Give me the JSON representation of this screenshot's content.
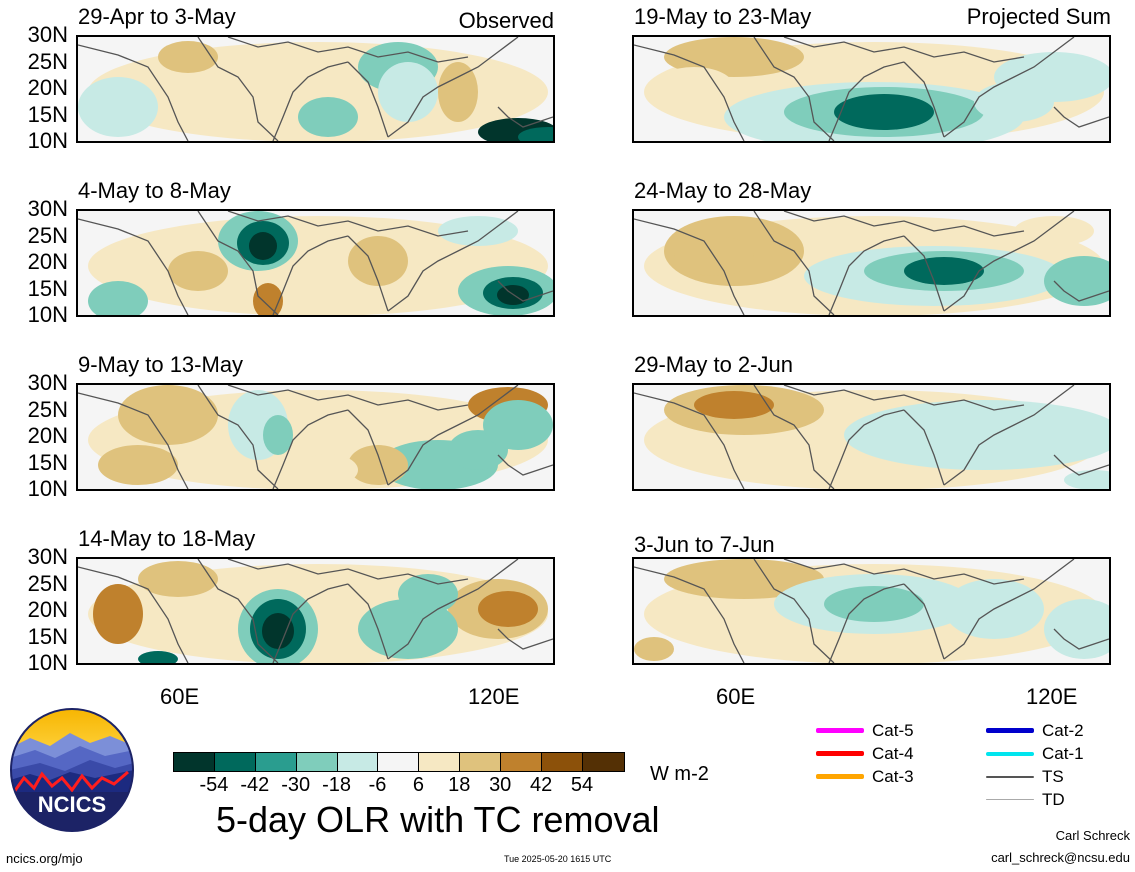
{
  "observed_label": "Observed",
  "projected_label": "Projected Sum",
  "panels_left": [
    {
      "title": "29-Apr to 3-May"
    },
    {
      "title": "4-May to 8-May"
    },
    {
      "title": "9-May to 13-May"
    },
    {
      "title": "14-May to 18-May"
    }
  ],
  "panels_right": [
    {
      "title": "19-May to 23-May"
    },
    {
      "title": "24-May to 28-May"
    },
    {
      "title": "29-May to 2-Jun"
    },
    {
      "title": "3-Jun to 7-Jun"
    }
  ],
  "y_ticks": [
    "30N",
    "25N",
    "20N",
    "15N",
    "10N"
  ],
  "x_ticks": [
    "60E",
    "120E"
  ],
  "colorbar": {
    "colors": [
      "#01352c",
      "#00695c",
      "#2a9d8f",
      "#7fcdbb",
      "#c7eae5",
      "#f5f5f5",
      "#f6e8c3",
      "#dfc27d",
      "#bf812d",
      "#8c510a",
      "#543005"
    ],
    "labels": [
      "-54",
      "-42",
      "-30",
      "-18",
      "-6",
      "6",
      "18",
      "30",
      "42",
      "54"
    ],
    "units": "W m-2"
  },
  "main_title": "5-day OLR with TC removal",
  "legend": [
    {
      "label": "Cat-5",
      "color": "#ff00ff",
      "width": 5
    },
    {
      "label": "Cat-4",
      "color": "#ff0000",
      "width": 5
    },
    {
      "label": "Cat-3",
      "color": "#ffa500",
      "width": 5
    },
    {
      "label": "Cat-2",
      "color": "#0000cc",
      "width": 5
    },
    {
      "label": "Cat-1",
      "color": "#00e5ee",
      "width": 4
    },
    {
      "label": "TS",
      "color": "#555555",
      "width": 2
    },
    {
      "label": "TD",
      "color": "#aaaaaa",
      "width": 1
    }
  ],
  "logo_text": "NCICS",
  "footer": {
    "left": "ncics.org/mjo",
    "center": "Tue 2025-05-20 1615 UTC",
    "right_name": "Carl Schreck",
    "right_email": "carl_schreck@ncsu.edu"
  }
}
